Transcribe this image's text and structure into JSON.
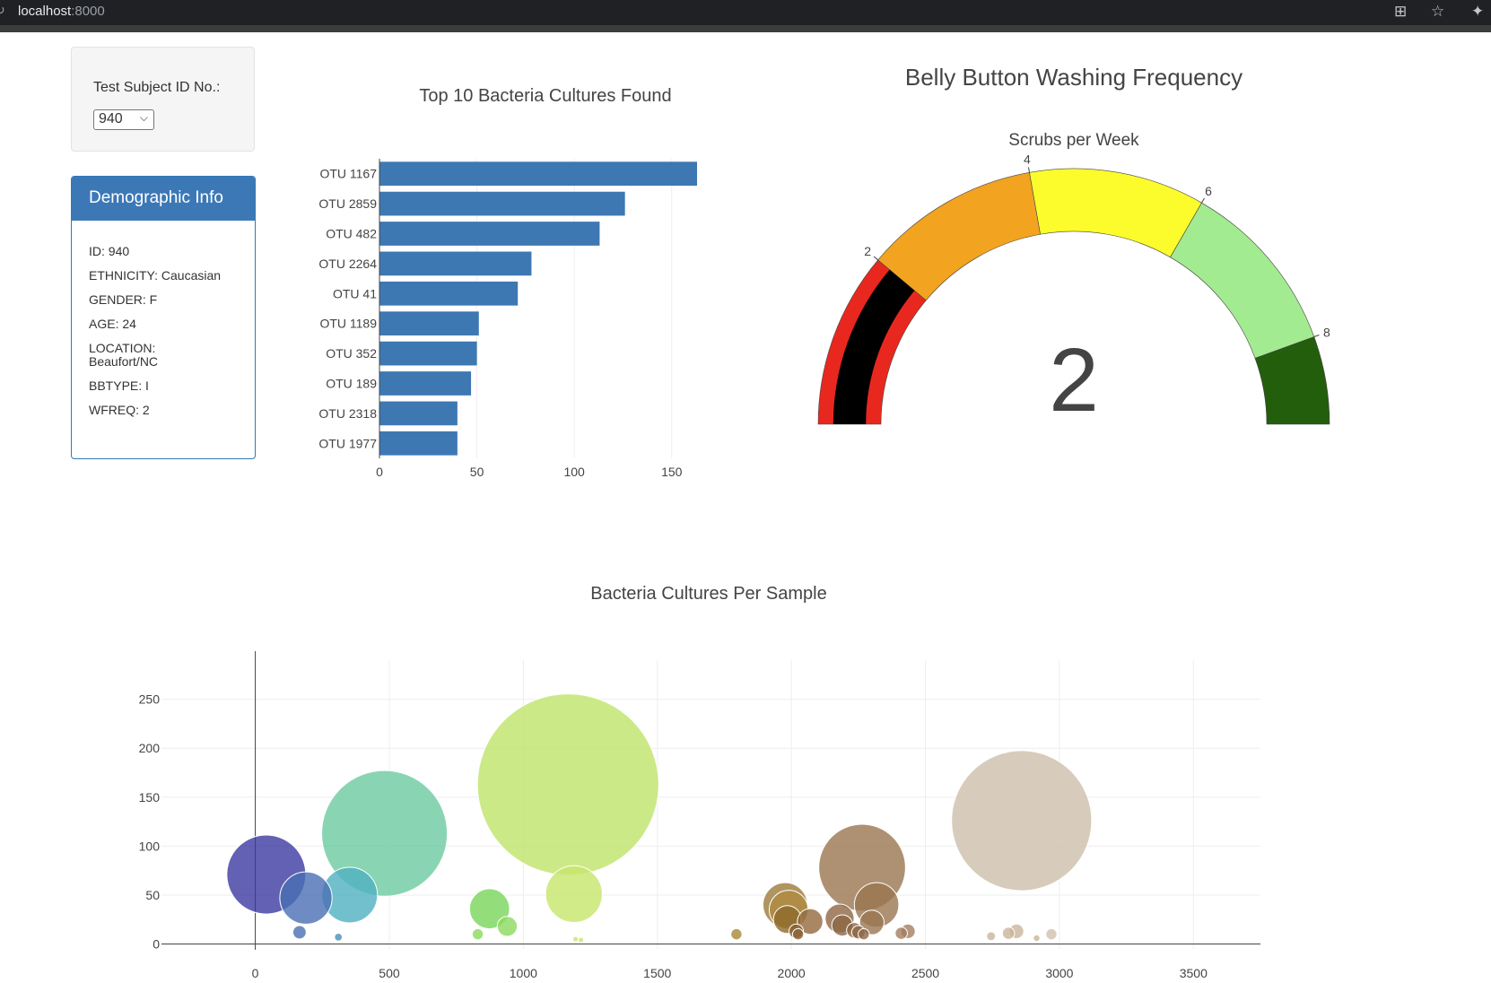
{
  "browser": {
    "url_host": "localhost",
    "url_port": ":8000",
    "reload_icon": "reload-icon",
    "extension_icon": "extensions-icon",
    "star_icon": "bookmark-star-icon",
    "puzzle_icon": "puzzle-icon"
  },
  "selector": {
    "label": "Test Subject ID No.:",
    "value": "940"
  },
  "demographic": {
    "title": "Demographic Info",
    "lines": [
      "ID: 940",
      "ETHNICITY: Caucasian",
      "GENDER: F",
      "AGE: 24",
      "LOCATION: Beaufort/NC",
      "BBTYPE: I",
      "WFREQ: 2"
    ]
  },
  "chart_data": [
    {
      "type": "bar",
      "orientation": "horizontal",
      "title": "Top 10 Bacteria Cultures Found",
      "categories": [
        "OTU 1167",
        "OTU 2859",
        "OTU 482",
        "OTU 2264",
        "OTU 41",
        "OTU 1189",
        "OTU 352",
        "OTU 189",
        "OTU 2318",
        "OTU 1977"
      ],
      "values": [
        163,
        126,
        113,
        78,
        71,
        51,
        50,
        47,
        40,
        40
      ],
      "xlim": [
        0,
        163
      ],
      "xticks": [
        0,
        50,
        100,
        150
      ],
      "color": "#3e78b2"
    },
    {
      "type": "gauge",
      "title": "Belly Button Washing Frequency",
      "subtitle": "Scrubs per Week",
      "value": 2,
      "range": [
        0,
        9
      ],
      "ticks": [
        2,
        4,
        6,
        8
      ],
      "steps": [
        {
          "from": 0,
          "to": 2,
          "color": "#e8281e"
        },
        {
          "from": 2,
          "to": 4,
          "color": "#f2a31f"
        },
        {
          "from": 4,
          "to": 6,
          "color": "#fcfc2c"
        },
        {
          "from": 6,
          "to": 8,
          "color": "#a3eb90"
        },
        {
          "from": 8,
          "to": 9,
          "color": "#235e0c"
        }
      ],
      "bar_color": "#000000"
    },
    {
      "type": "scatter",
      "subtype": "bubble",
      "title": "Bacteria Cultures Per Sample",
      "xlim": [
        -350,
        3750
      ],
      "ylim": [
        -5,
        290
      ],
      "xticks": [
        0,
        500,
        1000,
        1500,
        2000,
        2500,
        3000,
        3500
      ],
      "yticks": [
        0,
        50,
        100,
        150,
        200,
        250
      ],
      "points": [
        {
          "x": 41,
          "y": 71,
          "color": "#3b3aa0"
        },
        {
          "x": 189,
          "y": 47,
          "color": "#4a6fb4"
        },
        {
          "x": 352,
          "y": 50,
          "color": "#4fb0c0"
        },
        {
          "x": 482,
          "y": 113,
          "color": "#6bcba0"
        },
        {
          "x": 165,
          "y": 12,
          "color": "#4a6fb4"
        },
        {
          "x": 310,
          "y": 7,
          "color": "#4a8fb8"
        },
        {
          "x": 874,
          "y": 36,
          "color": "#78d65a"
        },
        {
          "x": 940,
          "y": 18,
          "color": "#8cd85e"
        },
        {
          "x": 830,
          "y": 10,
          "color": "#8cd85e"
        },
        {
          "x": 1167,
          "y": 163,
          "color": "#bfe36a"
        },
        {
          "x": 1189,
          "y": 51,
          "color": "#c5e66b"
        },
        {
          "x": 1195,
          "y": 5,
          "color": "#c5e66b"
        },
        {
          "x": 1215,
          "y": 4,
          "color": "#c5e66b"
        },
        {
          "x": 1795,
          "y": 10,
          "color": "#a68a33"
        },
        {
          "x": 1977,
          "y": 40,
          "color": "#9c7a3a"
        },
        {
          "x": 1985,
          "y": 25,
          "color": "#8d6a2a"
        },
        {
          "x": 1990,
          "y": 35,
          "color": "#b08a40"
        },
        {
          "x": 2018,
          "y": 13,
          "color": "#8a6032"
        },
        {
          "x": 2025,
          "y": 10,
          "color": "#8a6032"
        },
        {
          "x": 2070,
          "y": 23,
          "color": "#94693f"
        },
        {
          "x": 2264,
          "y": 78,
          "color": "#9a7550"
        },
        {
          "x": 2318,
          "y": 40,
          "color": "#9a7550"
        },
        {
          "x": 2180,
          "y": 26,
          "color": "#8d6645"
        },
        {
          "x": 2190,
          "y": 19,
          "color": "#8d6645"
        },
        {
          "x": 2235,
          "y": 14,
          "color": "#8d6645"
        },
        {
          "x": 2250,
          "y": 12,
          "color": "#8d6645"
        },
        {
          "x": 2270,
          "y": 10,
          "color": "#8d6645"
        },
        {
          "x": 2300,
          "y": 22,
          "color": "#9a7550"
        },
        {
          "x": 2410,
          "y": 11,
          "color": "#a47e5f"
        },
        {
          "x": 2435,
          "y": 13,
          "color": "#a47e5f"
        },
        {
          "x": 2859,
          "y": 126,
          "color": "#cdbfaa"
        },
        {
          "x": 2745,
          "y": 8,
          "color": "#c9b49b"
        },
        {
          "x": 2810,
          "y": 11,
          "color": "#c9b49b"
        },
        {
          "x": 2840,
          "y": 13,
          "color": "#c9b49b"
        },
        {
          "x": 2915,
          "y": 6,
          "color": "#c9b49b"
        },
        {
          "x": 2970,
          "y": 10,
          "color": "#d0c0ad"
        }
      ],
      "size_field": "y"
    }
  ]
}
